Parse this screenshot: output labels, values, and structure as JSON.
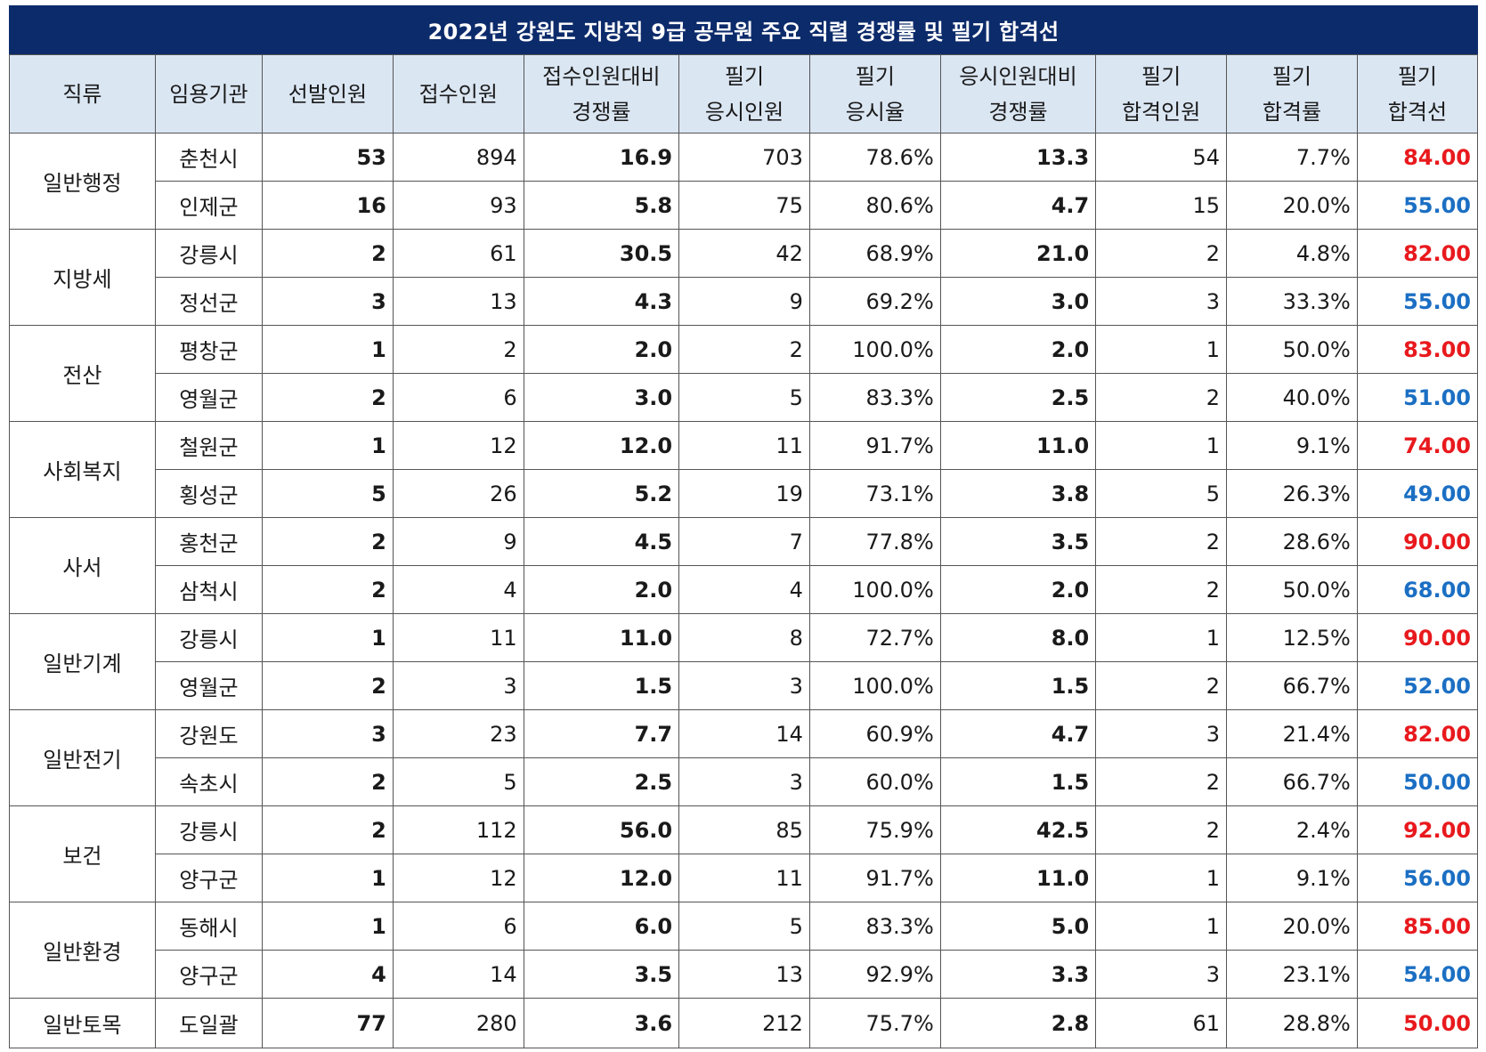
{
  "title": "2022년 강원도 지방직 9급 공무원 주요 직렬 경쟁률 및 필기 합격선",
  "colors": {
    "title_bg": "#0c2b6b",
    "header_bg": "#dbe6f3",
    "cutoff_high": "#e8191d",
    "cutoff_low": "#1b6fc3"
  },
  "headers": [
    [
      "직류"
    ],
    [
      "임용기관"
    ],
    [
      "선발인원"
    ],
    [
      "접수인원"
    ],
    [
      "접수인원대비",
      "경쟁률"
    ],
    [
      "필기",
      "응시인원"
    ],
    [
      "필기",
      "응시율"
    ],
    [
      "응시인원대비",
      "경쟁률"
    ],
    [
      "필기",
      "합격인원"
    ],
    [
      "필기",
      "합격률"
    ],
    [
      "필기",
      "합격선"
    ]
  ],
  "groups": [
    {
      "category": "일반행정",
      "rows": [
        {
          "org": "춘천시",
          "selected": "53",
          "applied": "894",
          "rate_applied": "16.9",
          "test_takers": "703",
          "attendance": "78.6%",
          "rate_takers": "13.3",
          "passed": "54",
          "pass_rate": "7.7%",
          "cutoff": "84.00",
          "level": "high"
        },
        {
          "org": "인제군",
          "selected": "16",
          "applied": "93",
          "rate_applied": "5.8",
          "test_takers": "75",
          "attendance": "80.6%",
          "rate_takers": "4.7",
          "passed": "15",
          "pass_rate": "20.0%",
          "cutoff": "55.00",
          "level": "low"
        }
      ]
    },
    {
      "category": "지방세",
      "rows": [
        {
          "org": "강릉시",
          "selected": "2",
          "applied": "61",
          "rate_applied": "30.5",
          "test_takers": "42",
          "attendance": "68.9%",
          "rate_takers": "21.0",
          "passed": "2",
          "pass_rate": "4.8%",
          "cutoff": "82.00",
          "level": "high"
        },
        {
          "org": "정선군",
          "selected": "3",
          "applied": "13",
          "rate_applied": "4.3",
          "test_takers": "9",
          "attendance": "69.2%",
          "rate_takers": "3.0",
          "passed": "3",
          "pass_rate": "33.3%",
          "cutoff": "55.00",
          "level": "low"
        }
      ]
    },
    {
      "category": "전산",
      "rows": [
        {
          "org": "평창군",
          "selected": "1",
          "applied": "2",
          "rate_applied": "2.0",
          "test_takers": "2",
          "attendance": "100.0%",
          "rate_takers": "2.0",
          "passed": "1",
          "pass_rate": "50.0%",
          "cutoff": "83.00",
          "level": "high"
        },
        {
          "org": "영월군",
          "selected": "2",
          "applied": "6",
          "rate_applied": "3.0",
          "test_takers": "5",
          "attendance": "83.3%",
          "rate_takers": "2.5",
          "passed": "2",
          "pass_rate": "40.0%",
          "cutoff": "51.00",
          "level": "low"
        }
      ]
    },
    {
      "category": "사회복지",
      "rows": [
        {
          "org": "철원군",
          "selected": "1",
          "applied": "12",
          "rate_applied": "12.0",
          "test_takers": "11",
          "attendance": "91.7%",
          "rate_takers": "11.0",
          "passed": "1",
          "pass_rate": "9.1%",
          "cutoff": "74.00",
          "level": "high"
        },
        {
          "org": "횡성군",
          "selected": "5",
          "applied": "26",
          "rate_applied": "5.2",
          "test_takers": "19",
          "attendance": "73.1%",
          "rate_takers": "3.8",
          "passed": "5",
          "pass_rate": "26.3%",
          "cutoff": "49.00",
          "level": "low"
        }
      ]
    },
    {
      "category": "사서",
      "rows": [
        {
          "org": "홍천군",
          "selected": "2",
          "applied": "9",
          "rate_applied": "4.5",
          "test_takers": "7",
          "attendance": "77.8%",
          "rate_takers": "3.5",
          "passed": "2",
          "pass_rate": "28.6%",
          "cutoff": "90.00",
          "level": "high"
        },
        {
          "org": "삼척시",
          "selected": "2",
          "applied": "4",
          "rate_applied": "2.0",
          "test_takers": "4",
          "attendance": "100.0%",
          "rate_takers": "2.0",
          "passed": "2",
          "pass_rate": "50.0%",
          "cutoff": "68.00",
          "level": "low"
        }
      ]
    },
    {
      "category": "일반기계",
      "rows": [
        {
          "org": "강릉시",
          "selected": "1",
          "applied": "11",
          "rate_applied": "11.0",
          "test_takers": "8",
          "attendance": "72.7%",
          "rate_takers": "8.0",
          "passed": "1",
          "pass_rate": "12.5%",
          "cutoff": "90.00",
          "level": "high"
        },
        {
          "org": "영월군",
          "selected": "2",
          "applied": "3",
          "rate_applied": "1.5",
          "test_takers": "3",
          "attendance": "100.0%",
          "rate_takers": "1.5",
          "passed": "2",
          "pass_rate": "66.7%",
          "cutoff": "52.00",
          "level": "low"
        }
      ]
    },
    {
      "category": "일반전기",
      "rows": [
        {
          "org": "강원도",
          "selected": "3",
          "applied": "23",
          "rate_applied": "7.7",
          "test_takers": "14",
          "attendance": "60.9%",
          "rate_takers": "4.7",
          "passed": "3",
          "pass_rate": "21.4%",
          "cutoff": "82.00",
          "level": "high"
        },
        {
          "org": "속초시",
          "selected": "2",
          "applied": "5",
          "rate_applied": "2.5",
          "test_takers": "3",
          "attendance": "60.0%",
          "rate_takers": "1.5",
          "passed": "2",
          "pass_rate": "66.7%",
          "cutoff": "50.00",
          "level": "low"
        }
      ]
    },
    {
      "category": "보건",
      "rows": [
        {
          "org": "강릉시",
          "selected": "2",
          "applied": "112",
          "rate_applied": "56.0",
          "test_takers": "85",
          "attendance": "75.9%",
          "rate_takers": "42.5",
          "passed": "2",
          "pass_rate": "2.4%",
          "cutoff": "92.00",
          "level": "high"
        },
        {
          "org": "양구군",
          "selected": "1",
          "applied": "12",
          "rate_applied": "12.0",
          "test_takers": "11",
          "attendance": "91.7%",
          "rate_takers": "11.0",
          "passed": "1",
          "pass_rate": "9.1%",
          "cutoff": "56.00",
          "level": "low"
        }
      ]
    },
    {
      "category": "일반환경",
      "rows": [
        {
          "org": "동해시",
          "selected": "1",
          "applied": "6",
          "rate_applied": "6.0",
          "test_takers": "5",
          "attendance": "83.3%",
          "rate_takers": "5.0",
          "passed": "1",
          "pass_rate": "20.0%",
          "cutoff": "85.00",
          "level": "high"
        },
        {
          "org": "양구군",
          "selected": "4",
          "applied": "14",
          "rate_applied": "3.5",
          "test_takers": "13",
          "attendance": "92.9%",
          "rate_takers": "3.3",
          "passed": "3",
          "pass_rate": "23.1%",
          "cutoff": "54.00",
          "level": "low"
        }
      ]
    },
    {
      "category": "일반토목",
      "rows": [
        {
          "org": "도일괄",
          "selected": "77",
          "applied": "280",
          "rate_applied": "3.6",
          "test_takers": "212",
          "attendance": "75.7%",
          "rate_takers": "2.8",
          "passed": "61",
          "pass_rate": "28.8%",
          "cutoff": "50.00",
          "level": "high"
        }
      ]
    }
  ]
}
